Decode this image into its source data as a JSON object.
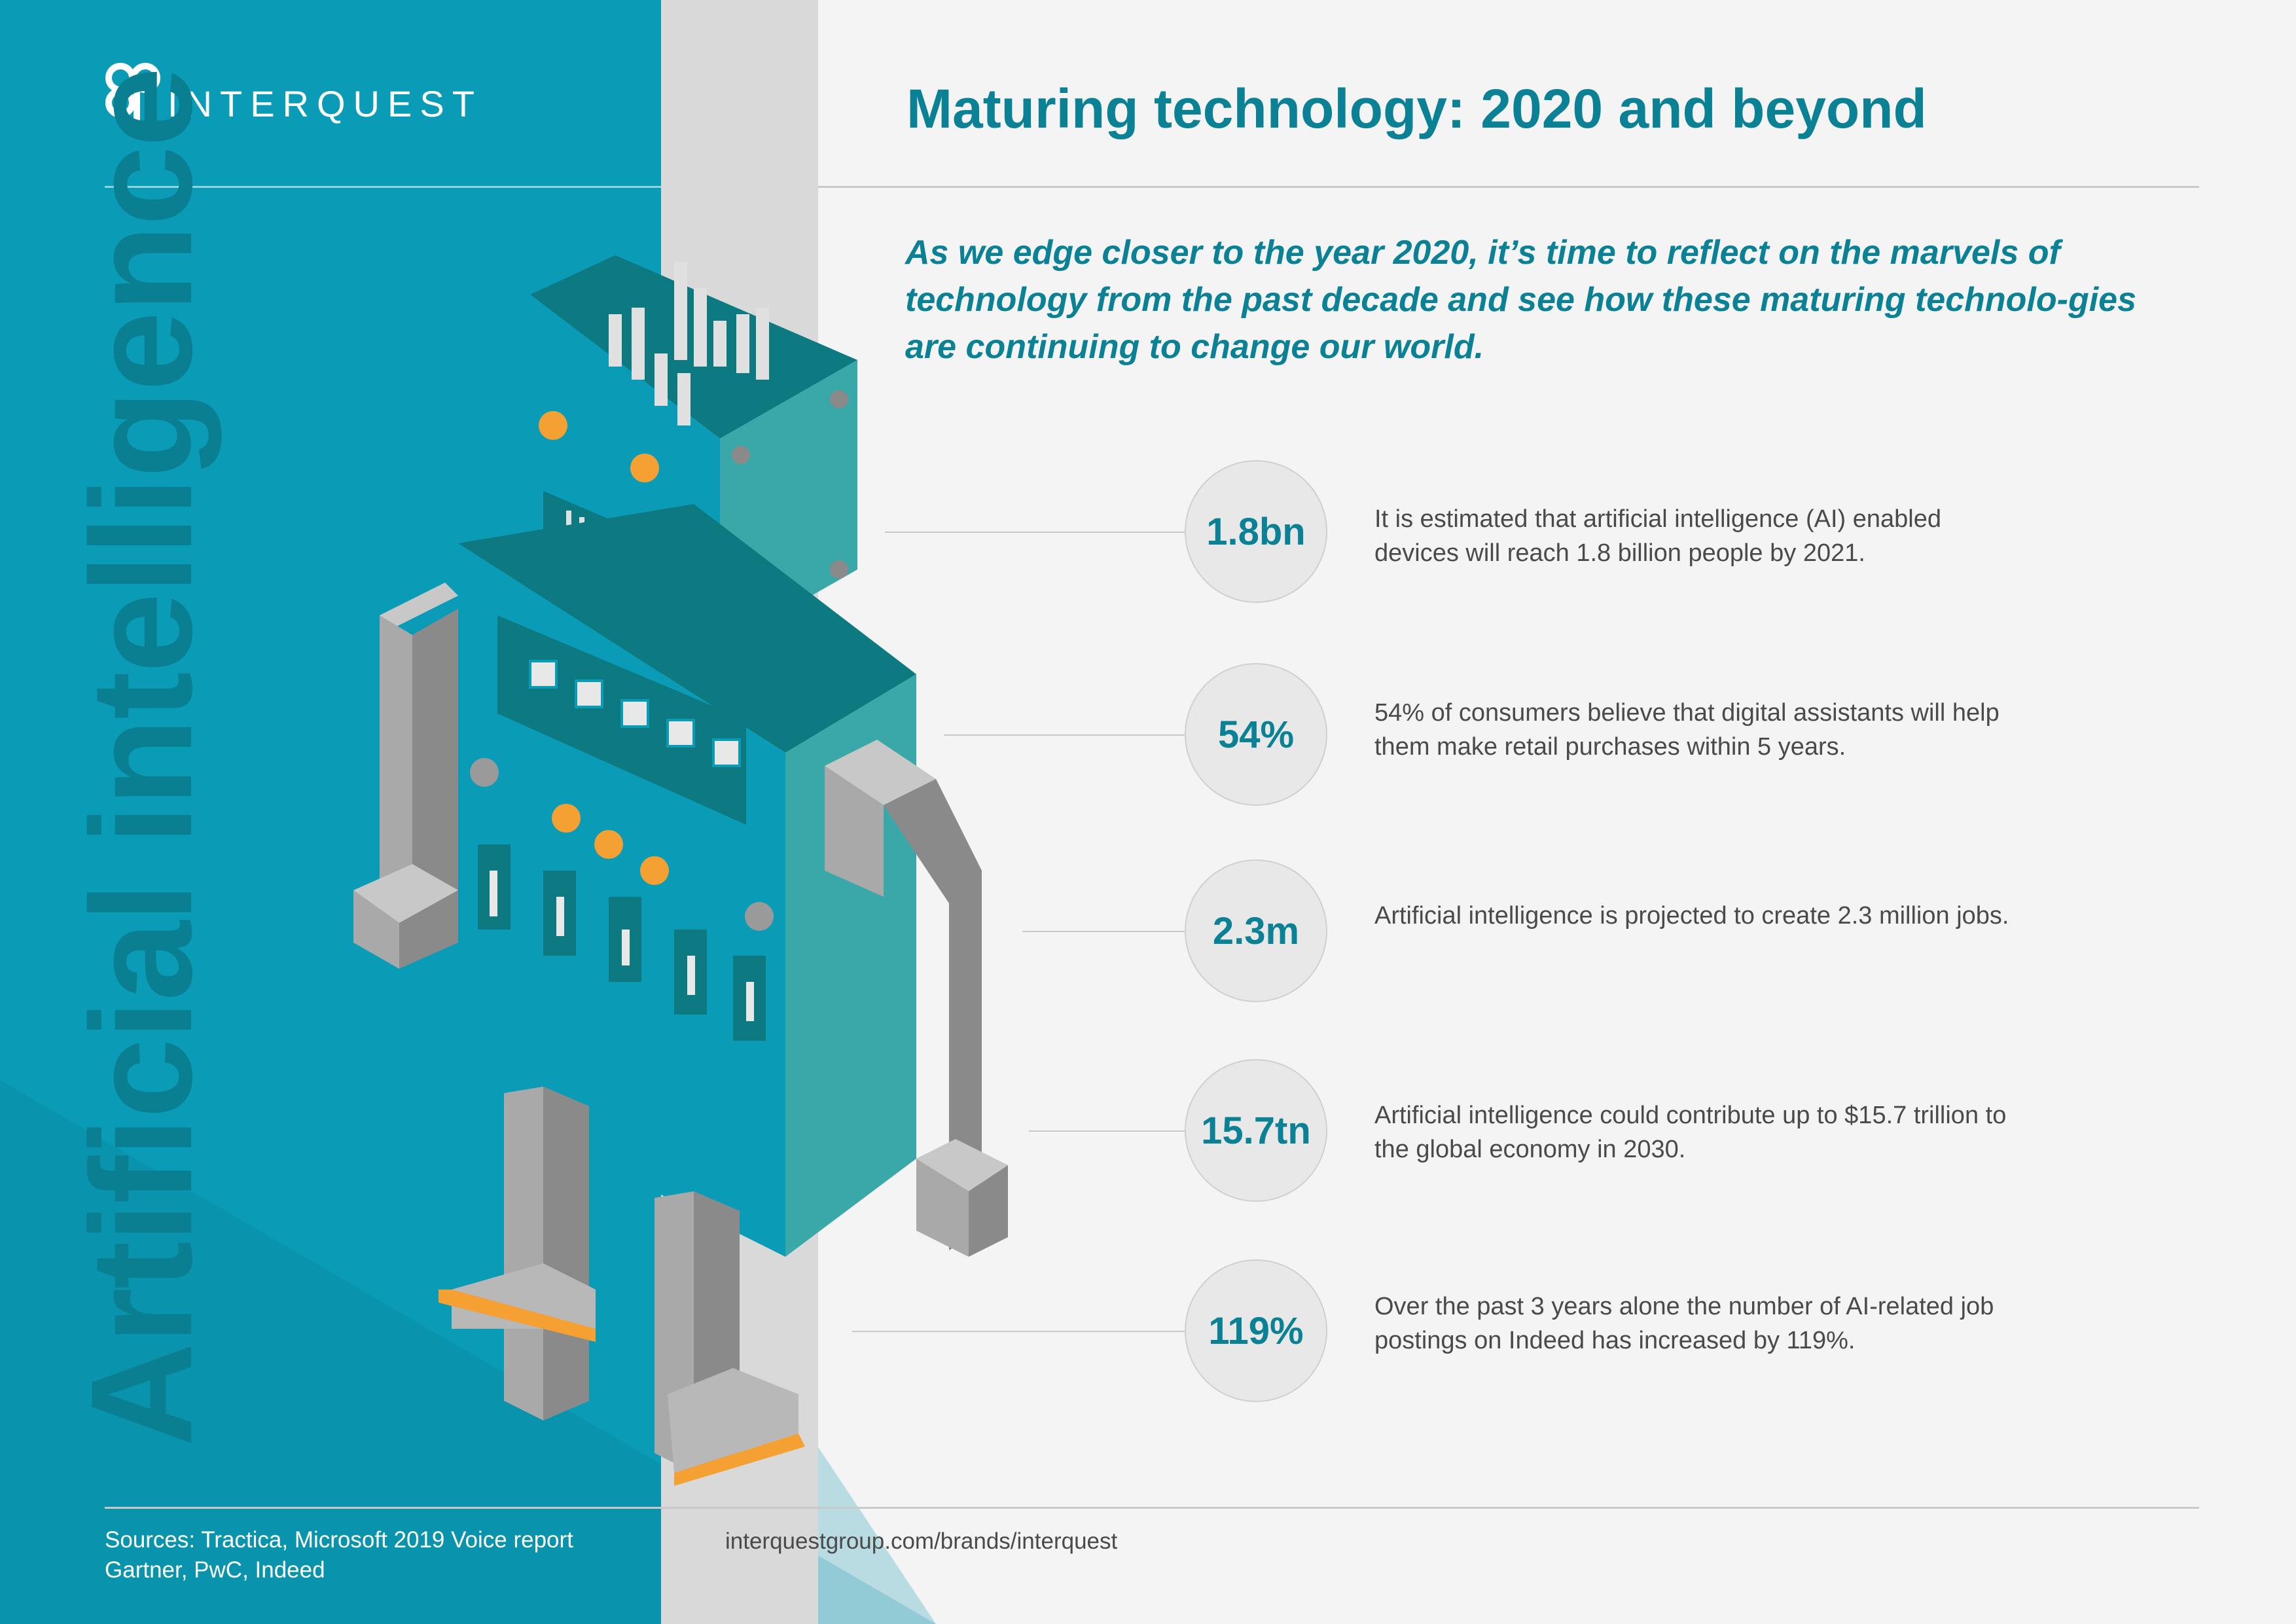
{
  "brand": {
    "name": "INTERQUEST"
  },
  "side_title": "Artificial intelligence",
  "header": {
    "title": "Maturing technology: 2020 and beyond"
  },
  "intro": "As we edge closer to the year 2020, it’s time to reflect on the marvels of technology from the past decade and see how these maturing technolo-gies are continuing to change our world.",
  "stats": [
    {
      "value": "1.8bn",
      "text": "It is estimated that artificial intelligence (AI) enabled devices will reach 1.8 billion people by 2021."
    },
    {
      "value": "54%",
      "text": "54% of consumers believe that digital assistants will help them make retail purchases within 5 years."
    },
    {
      "value": "2.3m",
      "text": "Artificial intelligence is projected to create 2.3 million jobs."
    },
    {
      "value": "15.7tn",
      "text": "Artificial intelligence could contribute up to $15.7 trillion to the global economy in 2030."
    },
    {
      "value": "119%",
      "text": "Over the past 3 years alone the number of AI-related job postings on Indeed has increased by 119%."
    }
  ],
  "footer": {
    "sources_line1": "Sources: Tractica, Microsoft 2019 Voice report",
    "sources_line2": "Gartner, PwC, Indeed",
    "website": "interquestgroup.com/brands/interquest"
  },
  "colors": {
    "teal_panel": "#0a9bb7",
    "teal_text": "#0a8194",
    "robot_teal": "#3aa8a8",
    "robot_dark": "#0c7a80",
    "orange": "#f5a033",
    "metal": "#a9a9a9"
  },
  "illustration": {
    "subject": "isometric-robot"
  }
}
